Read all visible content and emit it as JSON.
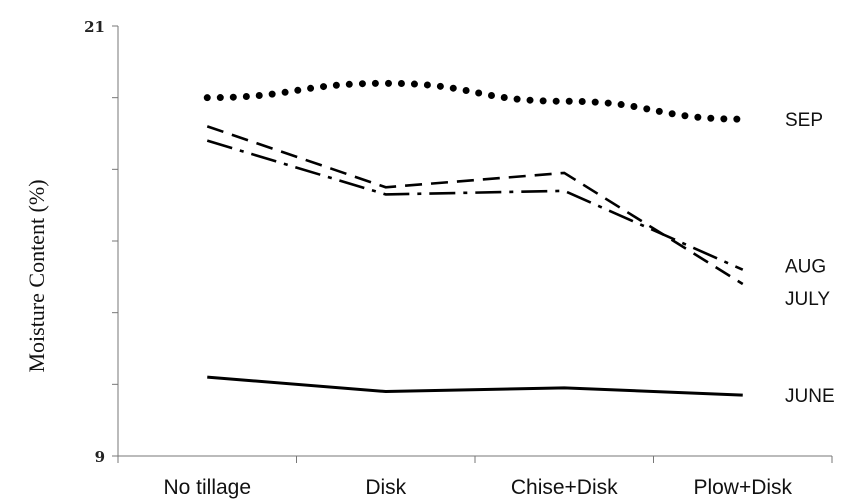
{
  "chart_data": {
    "type": "line",
    "title": "",
    "xlabel": "",
    "ylabel": "Moisture Content (%)",
    "categories": [
      "No tillage",
      "Disk",
      "Chise+Disk",
      "Plow+Disk"
    ],
    "ylim": [
      9,
      21
    ],
    "y_tick_labels": [
      "21",
      "9"
    ],
    "grid": false,
    "legend": "labels at line ends",
    "series": [
      {
        "name": "SEP",
        "style": "dotted",
        "values": [
          19.0,
          19.4,
          18.9,
          18.4
        ]
      },
      {
        "name": "AUG",
        "style": "dash-dot",
        "values": [
          17.8,
          16.3,
          16.4,
          14.2
        ]
      },
      {
        "name": "JULY",
        "style": "dashed",
        "values": [
          18.2,
          16.5,
          16.9,
          13.8
        ]
      },
      {
        "name": "JUNE",
        "style": "solid",
        "values": [
          11.2,
          10.8,
          10.9,
          10.7
        ]
      }
    ],
    "line_color": "#000000"
  }
}
